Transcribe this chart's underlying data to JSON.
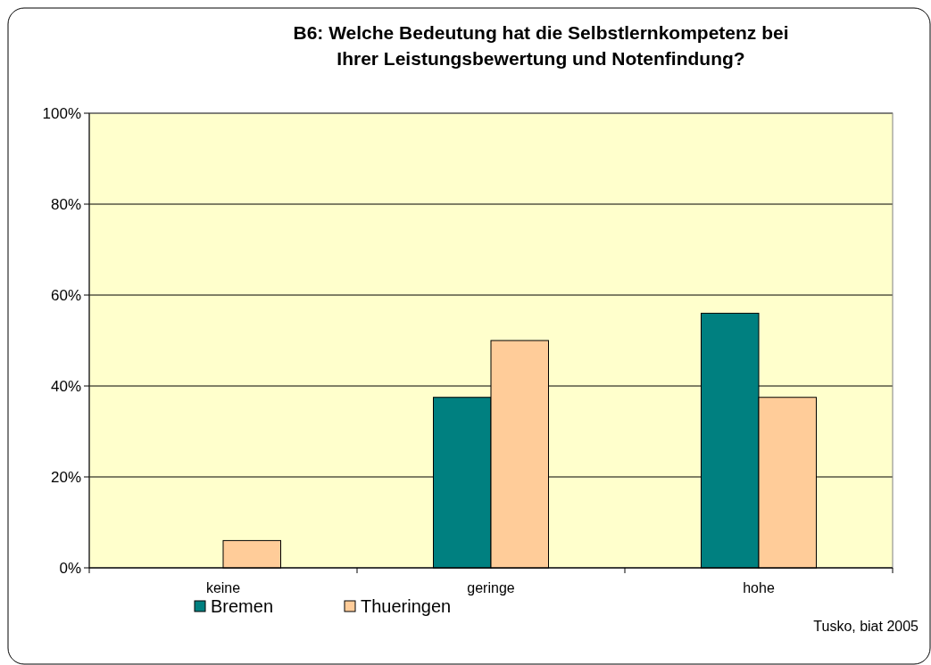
{
  "chart_data": {
    "type": "bar",
    "title": "B6: Welche Bedeutung hat die Selbstlernkompetenz bei\nIhrer Leistungsbewertung und Notenfindung?",
    "categories": [
      "keine",
      "geringe",
      "hohe"
    ],
    "series": [
      {
        "name": "Bremen",
        "color": "#008080",
        "values": [
          0,
          37.5,
          56
        ]
      },
      {
        "name": "Thueringen",
        "color": "#ffcc99",
        "values": [
          6,
          50,
          37.5
        ]
      }
    ],
    "ylim": [
      0,
      100
    ],
    "yticks": [
      {
        "value": 0,
        "label": "0%"
      },
      {
        "value": 20,
        "label": "20%"
      },
      {
        "value": 40,
        "label": "40%"
      },
      {
        "value": 60,
        "label": "60%"
      },
      {
        "value": 80,
        "label": "80%"
      },
      {
        "value": 100,
        "label": "100%"
      }
    ],
    "grid": "y",
    "legend": "bottom left",
    "annotations": [
      "Tusko, biat 2005"
    ]
  }
}
